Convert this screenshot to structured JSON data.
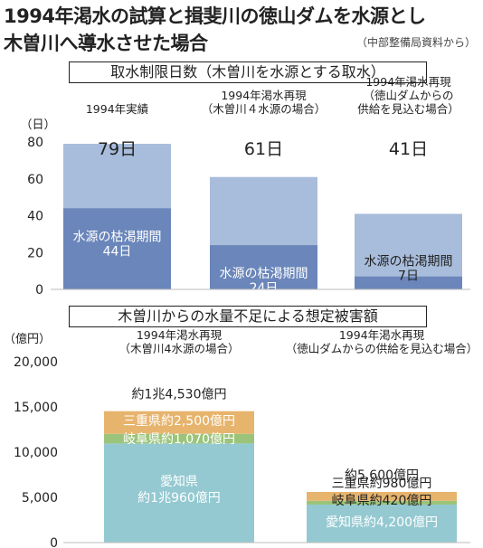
{
  "title_line1": "1994年渇水の試算と揖斐川の徳山ダムを水源とし",
  "title_line2": "木曽川へ導水させた場合",
  "source": "（中部整備局資料から）",
  "chart_data": [
    {
      "type": "bar",
      "title": "取水制限日数（木曽川を水源とする取水）",
      "ylabel": "（日）",
      "ylim": [
        0,
        80
      ],
      "yticks": [
        "0",
        "20",
        "40",
        "60",
        "80"
      ],
      "categories": [
        [
          "1994年実績"
        ],
        [
          "1994年渇水再現",
          "（木曽川４水源の場合）"
        ],
        [
          "1994年渇水再現",
          "（徳山ダムからの",
          "供給を見込む場合）"
        ]
      ],
      "totals": [
        79,
        61,
        41
      ],
      "total_labels": [
        "79日",
        "61日",
        "41日"
      ],
      "drought_days": [
        44,
        24,
        7
      ],
      "drought_label": "水源の枯渇期間",
      "drought_value_labels": [
        "44日",
        "24日",
        "7日"
      ],
      "colors": {
        "total": "#a8bcdb",
        "drought": "#6a86ba"
      }
    },
    {
      "type": "bar",
      "stacked": true,
      "title": "木曽川からの水量不足による想定被害額",
      "ylabel": "（億円）",
      "ylim": [
        0,
        20000
      ],
      "yticks": [
        "0",
        "5,000",
        "10,000",
        "15,000",
        "20,000"
      ],
      "categories": [
        [
          "1994年渇水再現",
          "（木曽川4水源の場合）"
        ],
        [
          "1994年渇水再現",
          "（徳山ダムからの供給を見込む場合）"
        ]
      ],
      "total_labels": [
        "約1兆4,530億円",
        "約5,600億円"
      ],
      "series": [
        {
          "name": "愛知県",
          "values": [
            10960,
            4200
          ],
          "labels": [
            "愛知県\n約1兆960億円",
            "愛知県約4,200億円"
          ],
          "color": "#94c9d1"
        },
        {
          "name": "岐阜県",
          "values": [
            1070,
            420
          ],
          "labels": [
            "岐阜県約1,070億円",
            "岐阜県約420億円"
          ],
          "color": "#9bc47a"
        },
        {
          "name": "三重県",
          "values": [
            2500,
            980
          ],
          "labels": [
            "三重県約2,500億円",
            "三重県約980億円"
          ],
          "color": "#e7b46d"
        }
      ]
    }
  ]
}
